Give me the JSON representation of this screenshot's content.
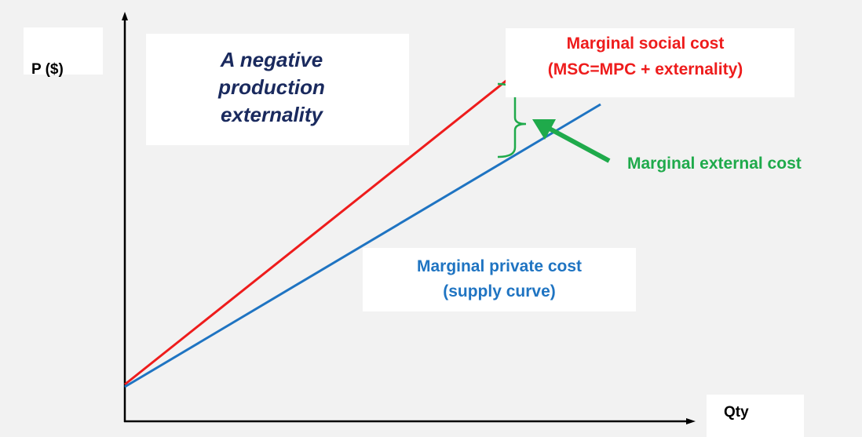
{
  "axes": {
    "y_label": "P ($)",
    "x_label": "Qty"
  },
  "title_box": {
    "lines": [
      "A negative",
      "production",
      "externality"
    ]
  },
  "msc_label": {
    "line1": "Marginal social cost",
    "line2": "(MSC=MPC + externality)"
  },
  "mpc_label": {
    "line1": "Marginal private cost",
    "line2": "(supply curve)"
  },
  "mec_label": "Marginal external cost",
  "colors": {
    "background": "#f2f2f2",
    "axis": "#000000",
    "msc_line": "#ee1c1c",
    "mpc_line": "#1f74c2",
    "external_cost": "#1faa4b",
    "title_text": "#1a2a5e"
  }
}
